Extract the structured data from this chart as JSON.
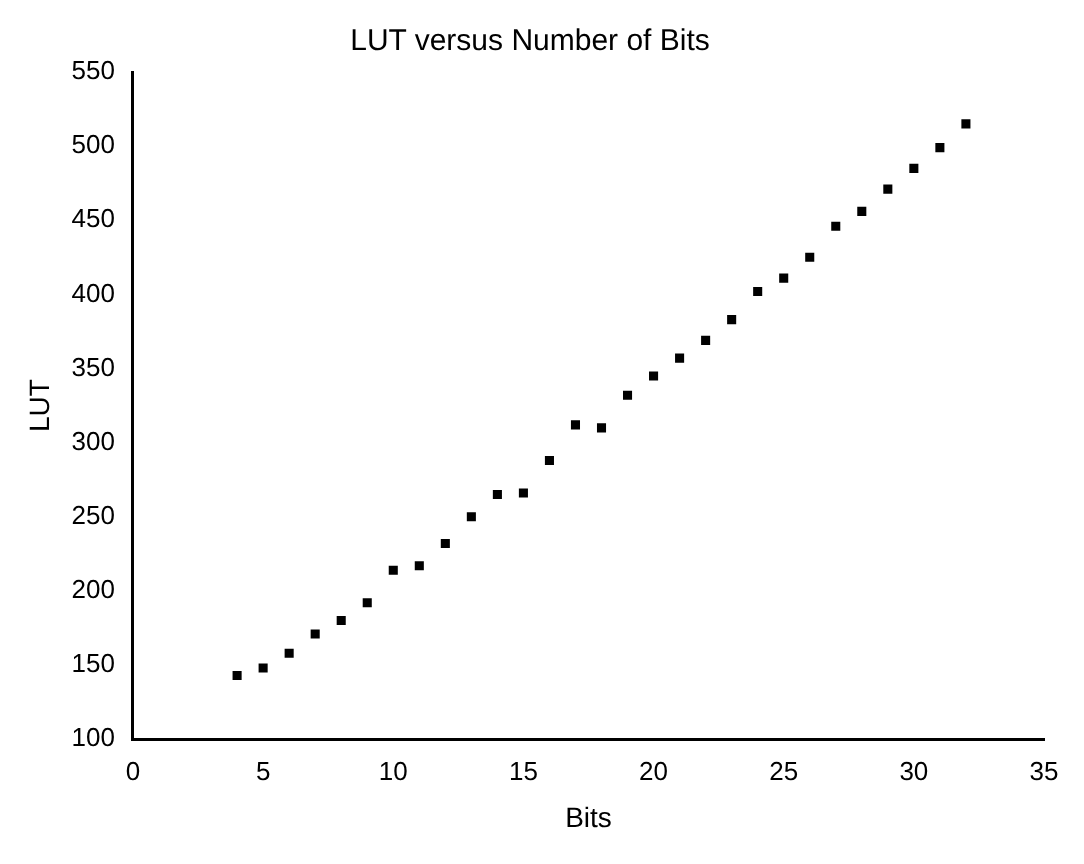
{
  "chart_data": {
    "type": "scatter",
    "title": "LUT versus Number of Bits",
    "xlabel": "Bits",
    "ylabel": "LUT",
    "x": [
      4,
      5,
      6,
      7,
      8,
      9,
      10,
      11,
      12,
      13,
      14,
      15,
      16,
      17,
      18,
      19,
      20,
      21,
      22,
      23,
      24,
      25,
      26,
      27,
      28,
      29,
      30,
      31,
      32
    ],
    "series": [
      {
        "color": "#000000",
        "values": [
          143,
          148,
          158,
          171,
          180,
          192,
          214,
          217,
          232,
          250,
          265,
          266,
          288,
          312,
          310,
          332,
          345,
          357,
          369,
          383,
          402,
          411,
          425,
          446,
          456,
          471,
          485,
          499,
          515
        ]
      }
    ],
    "xlim": [
      0,
      35
    ],
    "xticks": [
      0,
      5,
      10,
      15,
      20,
      25,
      30,
      35
    ],
    "ylim": [
      100,
      550
    ],
    "yticks": [
      100,
      150,
      200,
      250,
      300,
      350,
      400,
      450,
      500,
      550
    ],
    "marker": "square",
    "grid": false,
    "legend": false
  }
}
